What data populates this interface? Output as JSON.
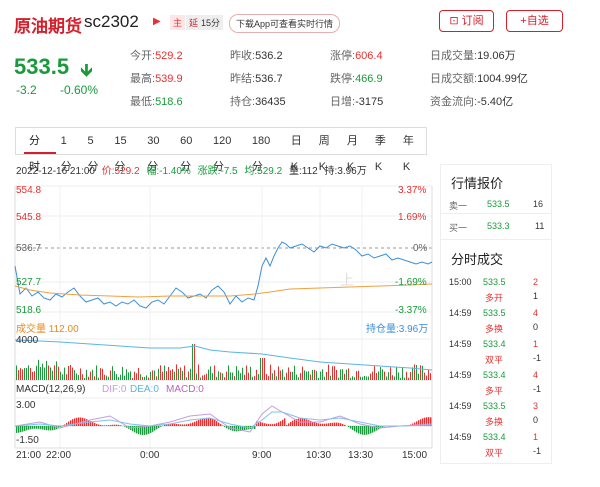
{
  "header": {
    "name": "原油期货",
    "code": "sc2302",
    "tag_main": "主",
    "tag_delay_prefix": "延",
    "tag_delay": "15分",
    "download_label": "下载App可查看实时行情",
    "subscribe_label": "订阅",
    "favorite_label": "+自选",
    "price": "533.5",
    "change": "-3.2",
    "change_pct": "-0.60%"
  },
  "quotes": {
    "open_label": "今开:",
    "open": "529.2",
    "prev_close_label": "昨收:",
    "prev_close": "536.2",
    "limit_up_label": "涨停:",
    "limit_up": "606.4",
    "volume_label": "日成交量:",
    "volume": "19.06万",
    "high_label": "最高:",
    "high": "539.9",
    "prev_settle_label": "昨结:",
    "prev_settle": "536.7",
    "limit_down_label": "跌停:",
    "limit_down": "466.9",
    "turnover_label": "日成交额:",
    "turnover": "1004.99亿",
    "low_label": "最低:",
    "low": "518.6",
    "oi_label": "持仓:",
    "oi": "36435",
    "oi_chg_label": "日增:",
    "oi_chg": "-3175",
    "flow_label": "资金流向:",
    "flow": "-5.40亿"
  },
  "tabs": [
    "分时",
    "1分",
    "5分",
    "15分",
    "30分",
    "60分",
    "120分",
    "180分",
    "日K",
    "周K",
    "月K",
    "季K",
    "年K"
  ],
  "infoline": {
    "time": "2022-12-16 21:00",
    "price": "价:529.2",
    "amp": "幅:-1.40%",
    "rise": "涨跌:-7.5",
    "avg": "均:529.2",
    "vol": "量:112",
    "oi": "持:3.96万"
  },
  "chart": {
    "y_left": [
      "554.8",
      "545.8",
      "536.7",
      "527.7",
      "518.6"
    ],
    "y_right": [
      "3.37%",
      "1.69%",
      "0%",
      "-1.69%",
      "-3.37%"
    ],
    "vol_label": "成交量",
    "vol_value": "112.00",
    "oi_label": "持仓量:3.96万",
    "vol_top": "4000",
    "macd_label": "MACD(12,26,9)",
    "dif": "DIF:0",
    "dea": "DEA:0",
    "macd": "MACD:0",
    "macd_top": "3.00",
    "macd_bottom": "-1.50",
    "x_ticks": [
      "21:00",
      "22:00",
      "0:00",
      "9:00",
      "10:30",
      "13:30",
      "15:00"
    ],
    "watermark": "上"
  },
  "right_panel": {
    "quote_title": "行情报价",
    "sell_label": "卖一",
    "sell_price": "533.5",
    "sell_qty": "16",
    "buy_label": "买一",
    "buy_price": "533.3",
    "buy_qty": "11",
    "trades_title": "分时成交",
    "trades": [
      {
        "time": "15:00",
        "price": "533.5",
        "qty": "2",
        "type": "多开",
        "delta": "1"
      },
      {
        "time": "14:59",
        "price": "533.5",
        "qty": "4",
        "type": "多换",
        "delta": "0"
      },
      {
        "time": "14:59",
        "price": "533.4",
        "qty": "1",
        "type": "双平",
        "delta": "-1"
      },
      {
        "time": "14:59",
        "price": "533.4",
        "qty": "4",
        "type": "多平",
        "delta": "-1"
      },
      {
        "time": "14:59",
        "price": "533.5",
        "qty": "3",
        "type": "多换",
        "delta": "0"
      },
      {
        "time": "14:59",
        "price": "533.4",
        "qty": "1",
        "type": "双平",
        "delta": "-1"
      }
    ]
  },
  "colors": {
    "red": "#e93030",
    "green": "#1a9a3c",
    "brand": "#d4202c"
  }
}
